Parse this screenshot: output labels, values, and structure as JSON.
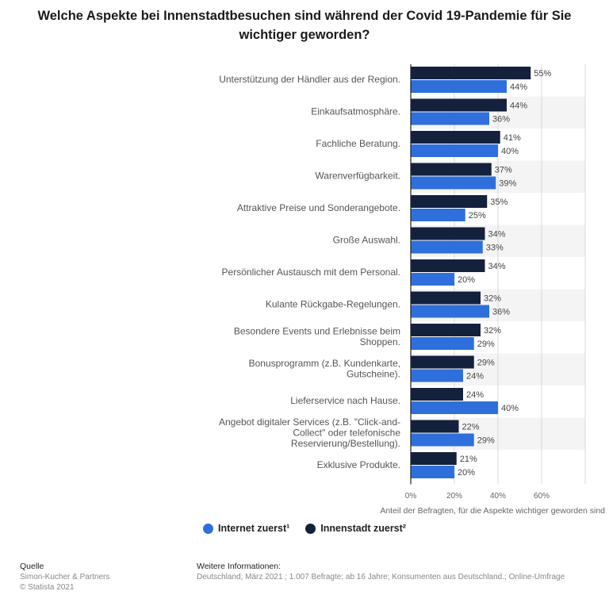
{
  "title": "Welche Aspekte bei Innenstadtbesuchen sind während der Covid 19-Pandemie für Sie wichtiger geworden?",
  "colors": {
    "internet": "#2f6fdc",
    "innenstadt": "#14213d",
    "band": "#f4f4f4",
    "grid": "#d9d9d9"
  },
  "chart_data": {
    "type": "bar",
    "orientation": "horizontal",
    "categories": [
      [
        "Unterstützung der Händler aus der Region."
      ],
      [
        "Einkaufsatmosphäre."
      ],
      [
        "Fachliche Beratung."
      ],
      [
        "Warenverfügbarkeit."
      ],
      [
        "Attraktive Preise und Sonderangebote."
      ],
      [
        "Große Auswahl."
      ],
      [
        "Persönlicher Austausch mit dem Personal."
      ],
      [
        "Kulante Rückgabe-Regelungen."
      ],
      [
        "Besondere Events und Erlebnisse beim",
        "Shoppen."
      ],
      [
        "Bonusprogramm (z.B. Kundenkarte,",
        "Gutscheine)."
      ],
      [
        "Lieferservice nach Hause."
      ],
      [
        "Angebot digitaler Services (z.B. \"Click-and-",
        "Collect\" oder telefonische",
        "Reservierung/Bestellung)."
      ],
      [
        "Exklusive Produkte."
      ]
    ],
    "series": [
      {
        "name": "Innenstadt zuerst²",
        "values": [
          55,
          44,
          41,
          37,
          35,
          34,
          34,
          32,
          32,
          29,
          24,
          22,
          21
        ]
      },
      {
        "name": "Internet zuerst¹",
        "values": [
          44,
          36,
          40,
          39,
          25,
          33,
          20,
          36,
          29,
          24,
          40,
          29,
          20
        ]
      }
    ],
    "value_suffix": "%",
    "xlim": [
      0,
      80
    ],
    "xticks": [
      "0%",
      "20%",
      "40%",
      "60%"
    ],
    "xlabel": "Anteil der Befragten, für die Aspekte wichtiger geworden sind",
    "legend": [
      {
        "name": "Internet zuerst¹",
        "color": "#2f6fdc"
      },
      {
        "name": "Innenstadt zuerst²",
        "color": "#14213d"
      }
    ],
    "legend_placement": "bottom"
  },
  "footer": {
    "source_head": "Quelle",
    "source_lines": [
      "Simon-Kucher & Partners",
      "© Statista 2021"
    ],
    "info_head": "Weitere Informationen:",
    "info_text": "Deutschland; März 2021 ; 1.007 Befragte; ab 16 Jahre; Konsumenten aus Deutschland.; Online-Umfrage"
  }
}
